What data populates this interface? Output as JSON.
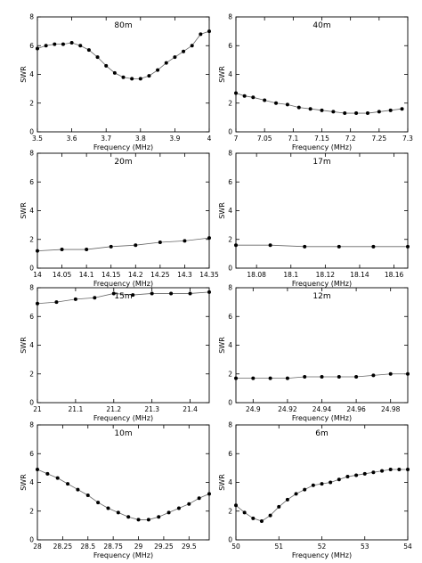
{
  "chart_data": [
    {
      "type": "line",
      "title": "80m",
      "xlabel": "Frequency (MHz)",
      "ylabel": "SWR",
      "xlim": [
        3.5,
        4.0
      ],
      "ylim": [
        0,
        8
      ],
      "xticks": [
        3.5,
        3.6,
        3.7,
        3.8,
        3.9,
        4.0
      ],
      "xtick_labels": [
        "3.5",
        "3.6",
        "3.7",
        "3.8",
        "3.9",
        "4"
      ],
      "yticks": [
        0,
        2,
        4,
        6,
        8
      ],
      "ytick_labels": [
        "0",
        "2",
        "4",
        "6",
        "8"
      ],
      "x": [
        3.5,
        3.525,
        3.55,
        3.575,
        3.6,
        3.625,
        3.65,
        3.675,
        3.7,
        3.725,
        3.75,
        3.775,
        3.8,
        3.825,
        3.85,
        3.875,
        3.9,
        3.925,
        3.95,
        3.975,
        4.0
      ],
      "y": [
        5.8,
        6.0,
        6.1,
        6.1,
        6.2,
        6.0,
        5.7,
        5.2,
        4.6,
        4.1,
        3.8,
        3.7,
        3.7,
        3.9,
        4.3,
        4.8,
        5.2,
        5.6,
        6.0,
        6.8,
        7.0
      ]
    },
    {
      "type": "line",
      "title": "40m",
      "xlabel": "Frequency (MHz)",
      "ylabel": "SWR",
      "xlim": [
        7.0,
        7.3
      ],
      "ylim": [
        0,
        8
      ],
      "xticks": [
        7.0,
        7.05,
        7.1,
        7.15,
        7.2,
        7.25,
        7.3
      ],
      "xtick_labels": [
        "7",
        "7.05",
        "7.1",
        "7.15",
        "7.2",
        "7.25",
        "7.3"
      ],
      "yticks": [
        0,
        2,
        4,
        6,
        8
      ],
      "ytick_labels": [
        "0",
        "2",
        "4",
        "6",
        "8"
      ],
      "x": [
        7.0,
        7.015,
        7.03,
        7.05,
        7.07,
        7.09,
        7.11,
        7.13,
        7.15,
        7.17,
        7.19,
        7.21,
        7.23,
        7.25,
        7.27,
        7.29
      ],
      "y": [
        2.7,
        2.5,
        2.4,
        2.2,
        2.0,
        1.9,
        1.7,
        1.6,
        1.5,
        1.4,
        1.3,
        1.3,
        1.3,
        1.4,
        1.5,
        1.6
      ]
    },
    {
      "type": "line",
      "title": "20m",
      "xlabel": "Frequency (MHz)",
      "ylabel": "SWR",
      "xlim": [
        14.0,
        14.35
      ],
      "ylim": [
        0,
        8
      ],
      "xticks": [
        14.0,
        14.05,
        14.1,
        14.15,
        14.2,
        14.25,
        14.3,
        14.35
      ],
      "xtick_labels": [
        "14",
        "14.05",
        "14.1",
        "14.15",
        "14.2",
        "14.25",
        "14.3",
        "14.35"
      ],
      "yticks": [
        0,
        2,
        4,
        6,
        8
      ],
      "ytick_labels": [
        "0",
        "2",
        "4",
        "6",
        "8"
      ],
      "x": [
        14.0,
        14.05,
        14.1,
        14.15,
        14.2,
        14.25,
        14.3,
        14.35
      ],
      "y": [
        1.2,
        1.3,
        1.3,
        1.5,
        1.6,
        1.8,
        1.9,
        2.1
      ]
    },
    {
      "type": "line",
      "title": "17m",
      "xlabel": "Frequency (MHz)",
      "ylabel": "SWR",
      "xlim": [
        18.068,
        18.168
      ],
      "ylim": [
        0,
        8
      ],
      "xticks": [
        18.08,
        18.1,
        18.12,
        18.14,
        18.16
      ],
      "xtick_labels": [
        "18.08",
        "18.1",
        "18.12",
        "18.14",
        "18.16"
      ],
      "yticks": [
        0,
        2,
        4,
        6,
        8
      ],
      "ytick_labels": [
        "0",
        "2",
        "4",
        "6",
        "8"
      ],
      "x": [
        18.068,
        18.088,
        18.108,
        18.128,
        18.148,
        18.168
      ],
      "y": [
        1.6,
        1.6,
        1.5,
        1.5,
        1.5,
        1.5
      ]
    },
    {
      "type": "line",
      "title": "15m",
      "xlabel": "Frequency (MHz)",
      "ylabel": "SWR",
      "xlim": [
        21.0,
        21.45
      ],
      "ylim": [
        0,
        8
      ],
      "xticks": [
        21.0,
        21.1,
        21.2,
        21.3,
        21.4
      ],
      "xtick_labels": [
        "21",
        "21.1",
        "21.2",
        "21.3",
        "21.4"
      ],
      "yticks": [
        0,
        2,
        4,
        6,
        8
      ],
      "ytick_labels": [
        "0",
        "2",
        "4",
        "6",
        "8"
      ],
      "x": [
        21.0,
        21.05,
        21.1,
        21.15,
        21.2,
        21.25,
        21.3,
        21.35,
        21.4,
        21.45
      ],
      "y": [
        6.9,
        7.0,
        7.2,
        7.3,
        7.6,
        7.5,
        7.6,
        7.6,
        7.6,
        7.7
      ]
    },
    {
      "type": "line",
      "title": "12m",
      "xlabel": "Frequency (MHz)",
      "ylabel": "SWR",
      "xlim": [
        24.89,
        24.99
      ],
      "ylim": [
        0,
        8
      ],
      "xticks": [
        24.9,
        24.92,
        24.94,
        24.96,
        24.98
      ],
      "xtick_labels": [
        "24.9",
        "24.92",
        "24.94",
        "24.96",
        "24.98"
      ],
      "yticks": [
        0,
        2,
        4,
        6,
        8
      ],
      "ytick_labels": [
        "0",
        "2",
        "4",
        "6",
        "8"
      ],
      "x": [
        24.89,
        24.9,
        24.91,
        24.92,
        24.93,
        24.94,
        24.95,
        24.96,
        24.97,
        24.98,
        24.99
      ],
      "y": [
        1.7,
        1.7,
        1.7,
        1.7,
        1.8,
        1.8,
        1.8,
        1.8,
        1.9,
        2.0,
        2.0
      ]
    },
    {
      "type": "line",
      "title": "10m",
      "xlabel": "Frequency (MHz)",
      "ylabel": "SWR",
      "xlim": [
        28.0,
        29.7
      ],
      "ylim": [
        0,
        8
      ],
      "xticks": [
        28.0,
        28.25,
        28.5,
        28.75,
        29.0,
        29.25,
        29.5
      ],
      "xtick_labels": [
        "28",
        "28.25",
        "28.5",
        "28.75",
        "29",
        "29.25",
        "29.5"
      ],
      "yticks": [
        0,
        2,
        4,
        6,
        8
      ],
      "ytick_labels": [
        "0",
        "2",
        "4",
        "6",
        "8"
      ],
      "x": [
        28.0,
        28.1,
        28.2,
        28.3,
        28.4,
        28.5,
        28.6,
        28.7,
        28.8,
        28.9,
        29.0,
        29.1,
        29.2,
        29.3,
        29.4,
        29.5,
        29.6,
        29.7
      ],
      "y": [
        4.9,
        4.6,
        4.3,
        3.9,
        3.5,
        3.1,
        2.6,
        2.2,
        1.9,
        1.6,
        1.4,
        1.4,
        1.6,
        1.9,
        2.2,
        2.5,
        2.9,
        3.2
      ]
    },
    {
      "type": "line",
      "title": "6m",
      "xlabel": "Frequency (MHz)",
      "ylabel": "SWR",
      "xlim": [
        50.0,
        54.0
      ],
      "ylim": [
        0,
        8
      ],
      "xticks": [
        50,
        51,
        52,
        53,
        54
      ],
      "xtick_labels": [
        "50",
        "51",
        "52",
        "53",
        "54"
      ],
      "yticks": [
        0,
        2,
        4,
        6,
        8
      ],
      "ytick_labels": [
        "0",
        "2",
        "4",
        "6",
        "8"
      ],
      "x": [
        50.0,
        50.2,
        50.4,
        50.6,
        50.8,
        51.0,
        51.2,
        51.4,
        51.6,
        51.8,
        52.0,
        52.2,
        52.4,
        52.6,
        52.8,
        53.0,
        53.2,
        53.4,
        53.6,
        53.8,
        54.0
      ],
      "y": [
        2.4,
        1.9,
        1.5,
        1.3,
        1.7,
        2.3,
        2.8,
        3.2,
        3.5,
        3.8,
        3.9,
        4.0,
        4.2,
        4.4,
        4.5,
        4.6,
        4.7,
        4.8,
        4.9,
        4.9,
        4.9
      ]
    }
  ]
}
